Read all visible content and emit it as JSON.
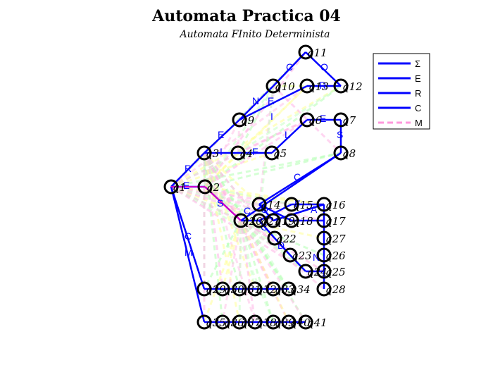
{
  "title": "Automata Practica 04",
  "subtitle": "Automata FInito Determinista",
  "legend": [
    {
      "label": "Σ",
      "color": "#0000ff",
      "style": "solid"
    },
    {
      "label": "E",
      "color": "#0000ff",
      "style": "solid"
    },
    {
      "label": "R",
      "color": "#0000ff",
      "style": "solid"
    },
    {
      "label": "C",
      "color": "#0000ff",
      "style": "solid"
    },
    {
      "label": "M",
      "color": "#ff99dd",
      "style": "dashed"
    }
  ],
  "colors": {
    "edge": "#0000ff",
    "node": "#000000",
    "accent": "#cc00cc"
  },
  "nodes": [
    "q1",
    "q2",
    "q3",
    "q4",
    "q5",
    "q6",
    "q7",
    "q8",
    "q9",
    "q10",
    "q11",
    "q12",
    "q13",
    "q14",
    "q15",
    "q16",
    "q17",
    "q18",
    "q19",
    "q20",
    "q21",
    "q22",
    "q23",
    "q24",
    "q25",
    "q26",
    "q27",
    "q28",
    "q29",
    "q30",
    "q31",
    "q32",
    "q33",
    "q34",
    "q35",
    "q36",
    "q37",
    "q38",
    "q39",
    "q40",
    "q41"
  ],
  "edge_labels": [
    "R",
    "E",
    "I",
    "F",
    "E",
    "N",
    "C",
    "O",
    "R",
    "E",
    "I",
    "L",
    "E",
    "S",
    "C",
    "F",
    "S",
    "C",
    "O",
    "C",
    "A",
    "D",
    "N",
    "C",
    "M"
  ]
}
